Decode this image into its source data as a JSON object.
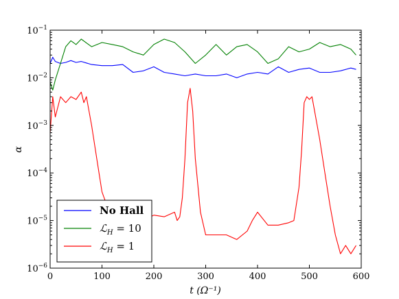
{
  "chart_data": {
    "type": "line",
    "xlabel": "t (Ω⁻¹)",
    "ylabel": "α",
    "xlim": [
      0,
      600
    ],
    "ylim": [
      1e-06,
      0.1
    ],
    "yscale": "log",
    "grid": false,
    "legend_position": "bottom-left",
    "x_ticks": [
      "0",
      "100",
      "200",
      "300",
      "400",
      "500",
      "600"
    ],
    "y_ticks": [
      {
        "base": "10",
        "exp": "−6"
      },
      {
        "base": "10",
        "exp": "−5"
      },
      {
        "base": "10",
        "exp": "−4"
      },
      {
        "base": "10",
        "exp": "−3"
      },
      {
        "base": "10",
        "exp": "−2"
      },
      {
        "base": "10",
        "exp": "−1"
      }
    ],
    "series": [
      {
        "name": "No Hall",
        "color": "#0000ff",
        "x": [
          0,
          5,
          10,
          20,
          30,
          40,
          50,
          60,
          80,
          100,
          120,
          140,
          160,
          180,
          200,
          220,
          240,
          260,
          280,
          300,
          320,
          340,
          360,
          380,
          400,
          420,
          440,
          460,
          480,
          500,
          520,
          540,
          560,
          580,
          590
        ],
        "y": [
          0.02,
          0.027,
          0.022,
          0.02,
          0.021,
          0.023,
          0.021,
          0.022,
          0.019,
          0.018,
          0.018,
          0.019,
          0.013,
          0.014,
          0.017,
          0.013,
          0.012,
          0.011,
          0.012,
          0.011,
          0.011,
          0.012,
          0.01,
          0.012,
          0.013,
          0.012,
          0.017,
          0.013,
          0.015,
          0.016,
          0.013,
          0.013,
          0.014,
          0.016,
          0.015
        ]
      },
      {
        "name": "ℒ_H = 10",
        "color": "#008000",
        "x": [
          0,
          5,
          10,
          20,
          30,
          40,
          50,
          60,
          80,
          100,
          120,
          140,
          160,
          180,
          200,
          220,
          240,
          260,
          280,
          300,
          320,
          340,
          360,
          380,
          400,
          420,
          440,
          460,
          480,
          500,
          520,
          540,
          560,
          580,
          590
        ],
        "y": [
          0.008,
          0.0055,
          0.009,
          0.02,
          0.045,
          0.06,
          0.05,
          0.065,
          0.045,
          0.055,
          0.05,
          0.045,
          0.035,
          0.03,
          0.05,
          0.065,
          0.055,
          0.035,
          0.02,
          0.03,
          0.05,
          0.03,
          0.045,
          0.05,
          0.035,
          0.02,
          0.025,
          0.045,
          0.035,
          0.04,
          0.055,
          0.045,
          0.05,
          0.04,
          0.03
        ]
      },
      {
        "name": "ℒ_H = 1",
        "color": "#ff0000",
        "x": [
          0,
          5,
          10,
          20,
          30,
          40,
          50,
          60,
          65,
          70,
          80,
          90,
          100,
          110,
          120,
          130,
          140,
          150,
          160,
          170,
          180,
          200,
          220,
          240,
          245,
          250,
          255,
          260,
          265,
          270,
          275,
          280,
          290,
          300,
          320,
          340,
          360,
          380,
          390,
          400,
          420,
          440,
          460,
          470,
          480,
          485,
          490,
          495,
          500,
          505,
          510,
          520,
          530,
          540,
          550,
          560,
          570,
          580,
          590
        ],
        "y": [
          0.0007,
          0.004,
          0.0015,
          0.004,
          0.003,
          0.004,
          0.0035,
          0.005,
          0.003,
          0.004,
          0.001,
          0.0002,
          4e-05,
          2e-05,
          1.5e-05,
          1.2e-05,
          1e-05,
          1.2e-05,
          1e-05,
          1.2e-05,
          1e-05,
          1.3e-05,
          1.2e-05,
          1.5e-05,
          1e-05,
          1.2e-05,
          3e-05,
          0.0002,
          0.003,
          0.006,
          0.002,
          0.0002,
          1.5e-05,
          5e-06,
          5e-06,
          5e-06,
          4e-06,
          6e-06,
          1e-05,
          1.5e-05,
          8e-06,
          8e-06,
          9e-06,
          1e-05,
          5e-05,
          0.0003,
          0.003,
          0.004,
          0.0035,
          0.004,
          0.002,
          0.0005,
          0.0001,
          2e-05,
          5e-06,
          2e-06,
          3e-06,
          2e-06,
          3e-06
        ]
      }
    ]
  }
}
